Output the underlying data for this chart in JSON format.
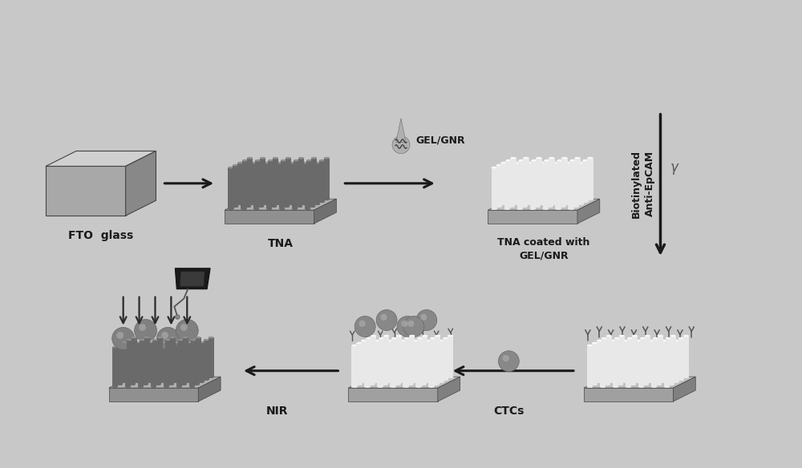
{
  "bg_color": "#c8c8c8",
  "labels": {
    "fto_glass": "FTO  glass",
    "tna": "TNA",
    "tna_coated": "TNA coated with\nGEL/GNR",
    "gel_gnr": "GEL/GNR",
    "biotinylated": "Biotinylated\nAnti-EpCAM",
    "ctcs": "CTCs",
    "nir": "NIR"
  },
  "colors": {
    "bg": "#c8c8c8",
    "dark_wire": "#6a6a6a",
    "dark_wire_top": "#909090",
    "dark_wire_side": "#505050",
    "light_wire": "#e8e8e8",
    "light_wire_top": "#f8f8f8",
    "light_wire_side": "#c0c0c0",
    "base_dark_face": "#909090",
    "base_dark_side": "#707070",
    "base_dark_top": "#b0b0b0",
    "base_light_face": "#a0a0a0",
    "base_light_side": "#808080",
    "base_light_top": "#c0c0c0",
    "fto_face": "#a8a8a8",
    "fto_top": "#d0d0d0",
    "fto_side": "#888888",
    "ball": "#888888",
    "ball_highlight": "#b0b0b0",
    "black": "#1a1a1a",
    "device": "#1a1a1a",
    "device_face": "#404040"
  }
}
